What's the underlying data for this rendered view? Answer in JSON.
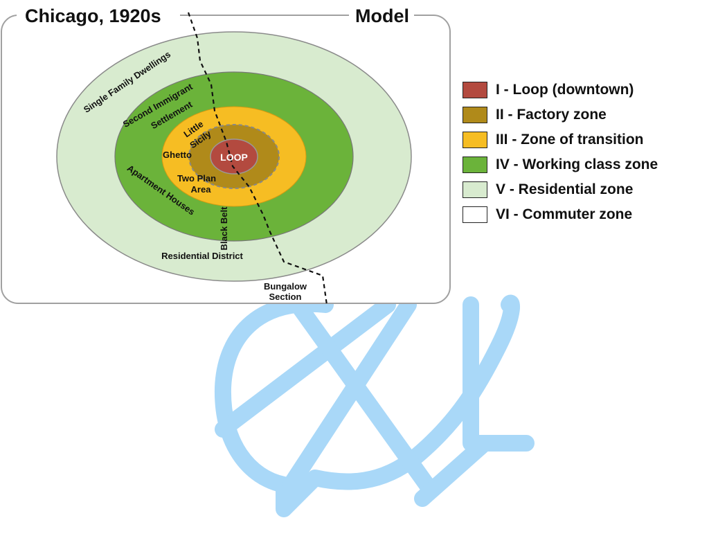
{
  "header": {
    "left_title": "Chicago, 1920s",
    "right_title": "Model"
  },
  "rings": {
    "center": "LOOP",
    "labels": {
      "single_family": "Single Family Dwellings",
      "second_immigrant_1": "Second Immigrant",
      "second_immigrant_2": "Settlement",
      "little_sicily_1": "Little",
      "little_sicily_2": "Sicily",
      "ghetto": "Ghetto",
      "two_plan_1": "Two Plan",
      "two_plan_2": "Area",
      "apartment_houses": "Apartment Houses",
      "black_belt": "Black Belt",
      "residential_district": "Residential District",
      "bungalow_1": "Bungalow",
      "bungalow_2": "Section"
    }
  },
  "legend": [
    {
      "label": "I - Loop (downtown)",
      "color": "#b34a3f"
    },
    {
      "label": "II - Factory zone",
      "color": "#b08a1a"
    },
    {
      "label": "III - Zone of transition",
      "color": "#f6bd23"
    },
    {
      "label": "IV - Working class zone",
      "color": "#6bb33a"
    },
    {
      "label": "V - Residential zone",
      "color": "#d8ebcf"
    },
    {
      "label": "VI - Commuter zone",
      "color": "#ffffff"
    }
  ],
  "colors": {
    "frame": "#999999",
    "watermark": "#a9d8f8",
    "boundary": "#111111"
  },
  "watermark_icon": "logo-watermark-icon"
}
